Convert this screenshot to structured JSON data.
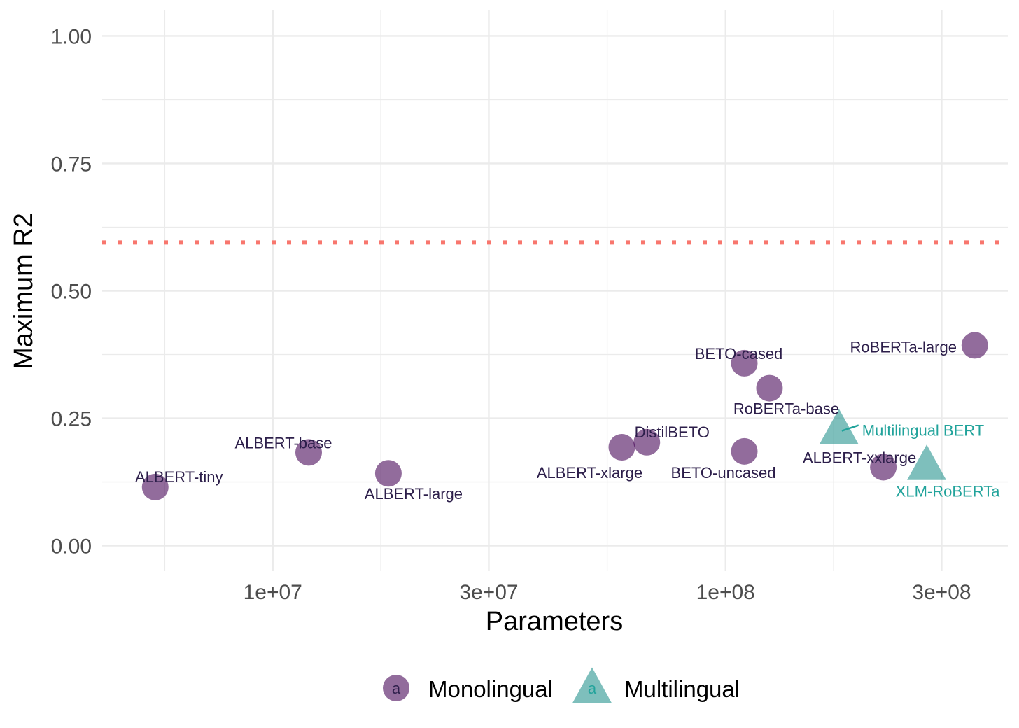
{
  "chart_data": {
    "type": "scatter",
    "xlabel": "Parameters",
    "ylabel": "Maximum R2",
    "x_scale": "log10",
    "xlim": [
      4200000,
      420000000
    ],
    "ylim": [
      -0.05,
      1.05
    ],
    "x_ticks": [
      10000000,
      30000000,
      100000000,
      300000000
    ],
    "x_tick_labels": [
      "1e+07",
      "3e+07",
      "1e+08",
      "3e+08"
    ],
    "y_ticks": [
      0,
      0.25,
      0.5,
      0.75,
      1
    ],
    "y_tick_labels": [
      "0.00",
      "0.25",
      "0.50",
      "0.75",
      "1.00"
    ],
    "grid": true,
    "reference_line": {
      "y": 0.595,
      "style": "dotted",
      "color": "#f8766d"
    },
    "legend_position": "bottom",
    "legend_glyph_text": "a",
    "groups": [
      {
        "name": "Monolingual",
        "shape": "circle",
        "color": "#440154"
      },
      {
        "name": "Multilingual",
        "shape": "triangle",
        "color": "#21908c"
      }
    ],
    "points": [
      {
        "label": "ALBERT-tiny",
        "group": "Monolingual",
        "x": 5500000,
        "y": 0.115
      },
      {
        "label": "ALBERT-base",
        "group": "Monolingual",
        "x": 12000000,
        "y": 0.183
      },
      {
        "label": "ALBERT-large",
        "group": "Monolingual",
        "x": 18000000,
        "y": 0.142
      },
      {
        "label": "ALBERT-xlarge",
        "group": "Monolingual",
        "x": 59000000,
        "y": 0.193
      },
      {
        "label": "DistilBETO",
        "group": "Monolingual",
        "x": 67000000,
        "y": 0.203
      },
      {
        "label": "BETO-uncased",
        "group": "Monolingual",
        "x": 110000000,
        "y": 0.185
      },
      {
        "label": "BETO-cased",
        "group": "Monolingual",
        "x": 110000000,
        "y": 0.358
      },
      {
        "label": "RoBERTa-base",
        "group": "Monolingual",
        "x": 125000000,
        "y": 0.309
      },
      {
        "label": "ALBERT-xxlarge",
        "group": "Monolingual",
        "x": 223000000,
        "y": 0.154
      },
      {
        "label": "RoBERTa-large",
        "group": "Monolingual",
        "x": 355000000,
        "y": 0.393
      },
      {
        "label": "Multilingual BERT",
        "group": "Multilingual",
        "x": 178000000,
        "y": 0.228
      },
      {
        "label": "XLM-RoBERTa",
        "group": "Multilingual",
        "x": 278000000,
        "y": 0.158
      }
    ]
  }
}
